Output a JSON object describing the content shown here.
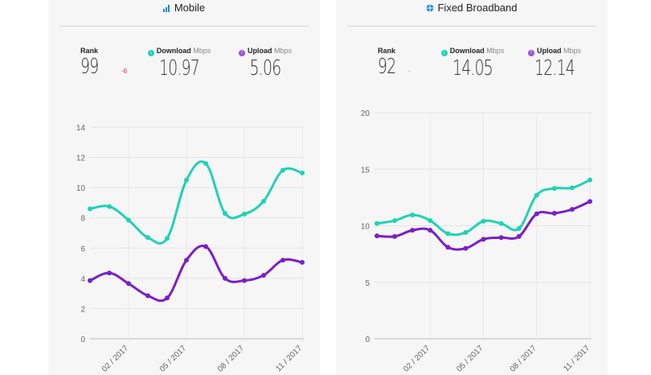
{
  "colors": {
    "download": "#1fd3b3",
    "upload": "#7b1fc7",
    "rank_down": "#e03030",
    "title_icon": "#1a8ad4"
  },
  "mobile": {
    "title": "Mobile",
    "icon": "signal-bars-icon",
    "rank_label": "Rank",
    "rank": "99",
    "rank_change": "-6",
    "download_label": "Download",
    "upload_label": "Upload",
    "unit": "Mbps",
    "download": "10.97",
    "upload": "5.06"
  },
  "fixed": {
    "title": "Fixed Broadband",
    "icon": "globe-icon",
    "rank_label": "Rank",
    "rank": "92",
    "rank_change": "-",
    "download_label": "Download",
    "upload_label": "Upload",
    "unit": "Mbps",
    "download": "14.05",
    "upload": "12.14"
  },
  "chart_data": [
    {
      "type": "line",
      "title": "Mobile",
      "ylim": [
        0,
        14
      ],
      "yticks": [
        0,
        2,
        4,
        6,
        8,
        10,
        12,
        14
      ],
      "x": [
        "12/2016",
        "01/2017",
        "02/2017",
        "03/2017",
        "04/2017",
        "05/2017",
        "06/2017",
        "07/2017",
        "08/2017",
        "09/2017",
        "10/2017",
        "11/2017"
      ],
      "xtick_labels": {
        "2": "02 / 2017",
        "5": "05 / 2017",
        "8": "08 / 2017",
        "11": "11 / 2017"
      },
      "series": [
        {
          "name": "Download",
          "values": [
            8.6,
            8.75,
            7.85,
            6.7,
            6.65,
            10.5,
            11.6,
            8.3,
            8.25,
            9.1,
            11.15,
            10.97
          ]
        },
        {
          "name": "Upload",
          "values": [
            3.85,
            4.35,
            3.65,
            2.85,
            2.7,
            5.2,
            6.1,
            4.0,
            3.85,
            4.2,
            5.2,
            5.06
          ]
        }
      ]
    },
    {
      "type": "line",
      "title": "Fixed Broadband",
      "ylim": [
        0,
        20
      ],
      "yticks": [
        0,
        5,
        10,
        15,
        20
      ],
      "x": [
        "11/2016",
        "12/2016",
        "01/2017",
        "02/2017",
        "03/2017",
        "04/2017",
        "05/2017",
        "06/2017",
        "07/2017",
        "08/2017",
        "09/2017",
        "10/2017",
        "11/2017"
      ],
      "xtick_labels": {
        "3": "02 / 2017",
        "6": "05 / 2017",
        "9": "08 / 2017",
        "12": "11 / 2017"
      },
      "series": [
        {
          "name": "Download",
          "values": [
            10.2,
            10.45,
            10.95,
            10.45,
            9.3,
            9.4,
            10.4,
            10.2,
            9.75,
            12.7,
            13.3,
            13.35,
            14.05
          ]
        },
        {
          "name": "Upload",
          "values": [
            9.1,
            9.05,
            9.6,
            9.6,
            8.1,
            8.0,
            8.8,
            8.95,
            9.05,
            11.05,
            11.1,
            11.45,
            12.14
          ]
        }
      ]
    }
  ]
}
